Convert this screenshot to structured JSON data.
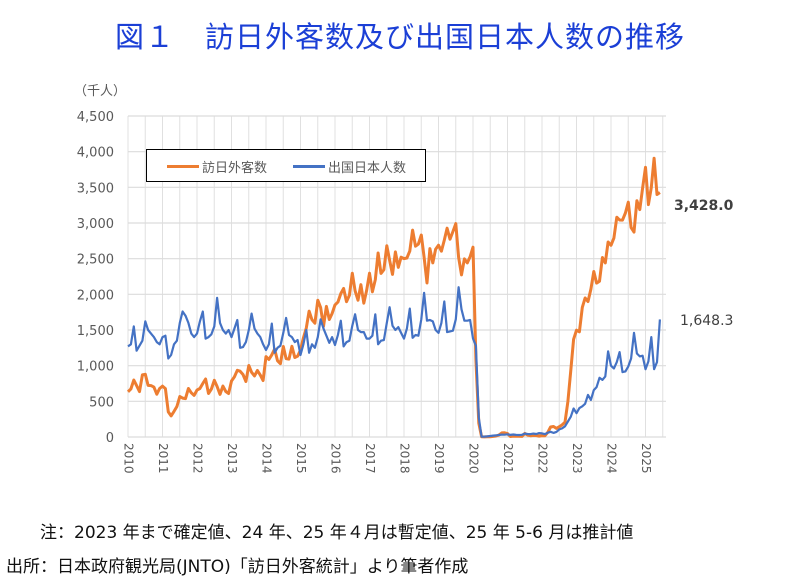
{
  "title": "図１　訪日外客数及び出国日本人数の推移",
  "chart_data": {
    "type": "line",
    "title": "図１　訪日外客数及び出国日本人数の推移",
    "ylabel": "（千人）",
    "xlabel": "",
    "ylim": [
      0,
      4500
    ],
    "yticks": [
      "0",
      "500",
      "1,000",
      "1,500",
      "2,000",
      "2,500",
      "3,000",
      "3,500",
      "4,000",
      "4,500"
    ],
    "ytick_values": [
      0,
      500,
      1000,
      1500,
      2000,
      2500,
      3000,
      3500,
      4000,
      4500
    ],
    "x_start": "2010-01",
    "x_end": "2025-06",
    "xticks": [
      "2010",
      "2011",
      "2012",
      "2013",
      "2014",
      "2015",
      "2016",
      "2017",
      "2018",
      "2019",
      "2020",
      "2021",
      "2022",
      "2023",
      "2024",
      "2025"
    ],
    "grid": true,
    "legend_position": "top-left",
    "series": [
      {
        "name": "訪日外客数",
        "color": "#ed7d31",
        "end_label": "3,428.0",
        "values": [
          634,
          674,
          797,
          720,
          637,
          870,
          879,
          724,
          720,
          700,
          600,
          680,
          714,
          678,
          352,
          296,
          359,
          427,
          568,
          546,
          539,
          680,
          619,
          583,
          657,
          680,
          750,
          813,
          610,
          673,
          795,
          708,
          597,
          714,
          638,
          610,
          785,
          842,
          935,
          923,
          876,
          778,
          1003,
          907,
          857,
          932,
          868,
          792,
          1127,
          1086,
          1152,
          1233,
          1070,
          1027,
          1269,
          1098,
          1092,
          1271,
          1114,
          1133,
          1219,
          1389,
          1528,
          1765,
          1643,
          1595,
          1918,
          1817,
          1550,
          1831,
          1647,
          1732,
          1852,
          1891,
          2010,
          2082,
          1897,
          1986,
          2296,
          2049,
          1918,
          2135,
          1876,
          2052,
          2296,
          2035,
          2205,
          2579,
          2294,
          2346,
          2682,
          2478,
          2280,
          2595,
          2377,
          2521,
          2501,
          2509,
          2607,
          2901,
          2675,
          2705,
          2832,
          2520,
          2159,
          2641,
          2441,
          2632,
          2689,
          2604,
          2760,
          2927,
          2773,
          2880,
          2991,
          2520,
          2272,
          2497,
          2441,
          2526,
          2661,
          1085,
          194,
          3,
          2,
          3,
          4,
          9,
          14,
          27,
          57,
          59,
          47,
          7,
          12,
          11,
          10,
          9,
          51,
          26,
          18,
          22,
          21,
          12,
          18,
          17,
          66,
          140,
          147,
          120,
          145,
          170,
          207,
          499,
          935,
          1370,
          1497,
          1475,
          1817,
          1949,
          1899,
          2073,
          2320,
          2158,
          2184,
          2517,
          2441,
          2734,
          2688,
          2788,
          3082,
          3042,
          3040,
          3140,
          3292,
          2936,
          2873,
          3312,
          3188,
          3489,
          3781,
          3258,
          3497,
          3908,
          3400,
          3428
        ]
      },
      {
        "name": "出国日本人数",
        "color": "#4472c4",
        "end_label": "1,648.3",
        "values": [
          1270,
          1300,
          1550,
          1210,
          1280,
          1350,
          1620,
          1500,
          1450,
          1400,
          1330,
          1300,
          1400,
          1420,
          1100,
          1150,
          1300,
          1350,
          1600,
          1760,
          1700,
          1600,
          1450,
          1400,
          1450,
          1620,
          1760,
          1380,
          1400,
          1440,
          1550,
          1950,
          1600,
          1500,
          1450,
          1500,
          1400,
          1520,
          1640,
          1250,
          1260,
          1330,
          1500,
          1730,
          1520,
          1450,
          1400,
          1300,
          1220,
          1300,
          1590,
          1180,
          1250,
          1280,
          1460,
          1670,
          1430,
          1400,
          1330,
          1360,
          1150,
          1300,
          1500,
          1180,
          1300,
          1250,
          1400,
          1650,
          1520,
          1420,
          1320,
          1400,
          1290,
          1430,
          1630,
          1270,
          1330,
          1350,
          1560,
          1720,
          1500,
          1470,
          1470,
          1380,
          1380,
          1420,
          1720,
          1300,
          1350,
          1360,
          1600,
          1820,
          1560,
          1500,
          1540,
          1460,
          1380,
          1520,
          1800,
          1390,
          1430,
          1420,
          1650,
          2020,
          1630,
          1640,
          1620,
          1500,
          1460,
          1600,
          1900,
          1470,
          1480,
          1490,
          1650,
          2100,
          1790,
          1630,
          1630,
          1640,
          1380,
          1280,
          270,
          4,
          5,
          9,
          14,
          20,
          23,
          30,
          33,
          32,
          38,
          30,
          35,
          30,
          28,
          31,
          47,
          42,
          40,
          47,
          42,
          55,
          50,
          40,
          60,
          73,
          58,
          71,
          107,
          120,
          150,
          217,
          284,
          400,
          333,
          405,
          430,
          466,
          590,
          520,
          657,
          700,
          830,
          800,
          850,
          1200,
          1000,
          960,
          1050,
          1190,
          910,
          920,
          990,
          1100,
          1460,
          1170,
          1130,
          1140,
          950,
          1060,
          1400,
          950,
          1050,
          1648.3
        ]
      }
    ]
  },
  "notes": [
    "注：2023 年まで確定値、24 年、25 年４月は暫定値、25 年 5-6 月は推計値",
    "出所：日本政府観光局(JNTO)「訪日外客統計」より筆者作成"
  ]
}
